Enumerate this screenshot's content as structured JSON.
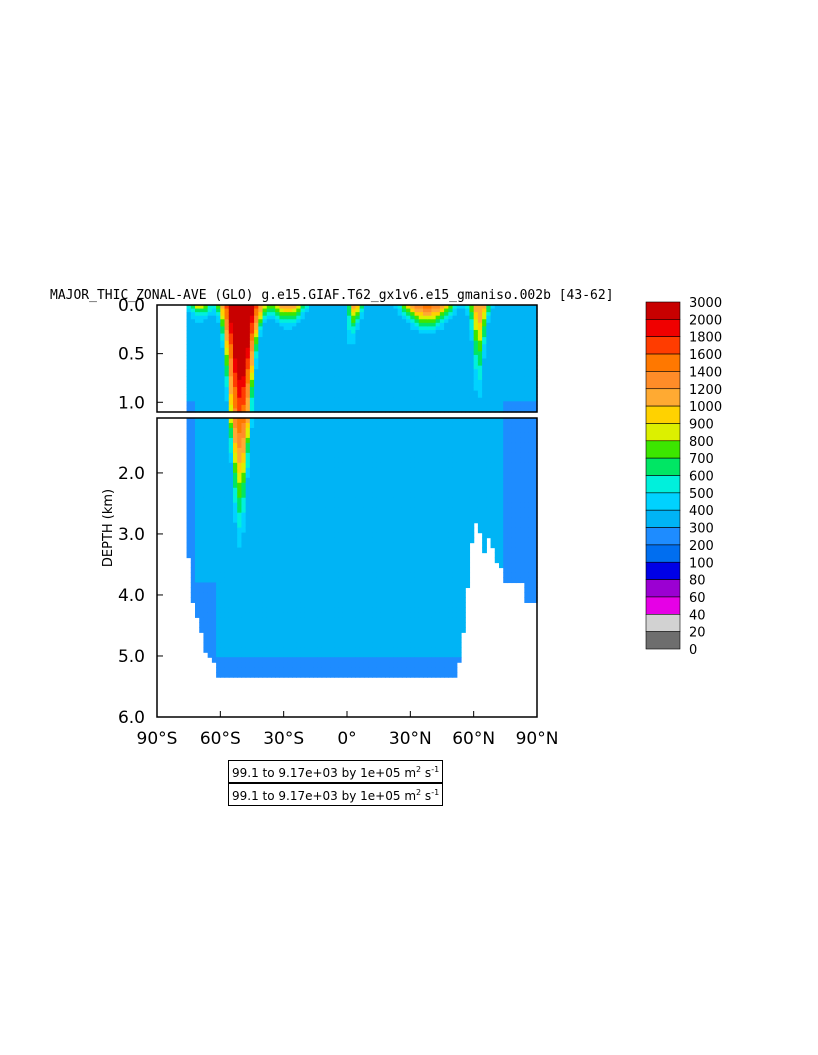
{
  "title": "MAJOR_THIC_ZONAL-AVE (GLO) g.e15.GIAF.T62_gx1v6.e15_gmaniso.002b [43-62]",
  "info_lines": [
    {
      "text": "99.1 to 9.17e+03 by 1e+05 m",
      "sup1": "2",
      "mid": " s",
      "sup2": "-1"
    },
    {
      "text": "99.1 to 9.17e+03 by 1e+05 m",
      "sup1": "2",
      "mid": " s",
      "sup2": "-1"
    }
  ],
  "colors": {
    "0": "#6e6e6e",
    "20": "#d2d2d2",
    "40": "#e600e6",
    "60": "#9b00d2",
    "80": "#0000e6",
    "100": "#006ef0",
    "200": "#1e8cff",
    "300": "#00b4f5",
    "400": "#00d2ff",
    "500": "#00f0dc",
    "600": "#00e664",
    "700": "#3ce600",
    "800": "#dcf000",
    "900": "#ffd200",
    "1000": "#ffaa32",
    "1200": "#ff8c28",
    "1400": "#ff7800",
    "1600": "#ff3c00",
    "1800": "#f00000",
    "2000": "#c80000"
  },
  "chart_data": {
    "type": "heatmap",
    "title": "MAJOR_THIC_ZONAL-AVE (GLO) g.e15.GIAF.T62_gx1v6.e15_gmaniso.002b [43-62]",
    "xlabel": "",
    "ylabel": "DEPTH (km)",
    "xlim": [
      -90,
      90
    ],
    "ylim_upper": [
      0.0,
      1.1
    ],
    "ylim_lower": [
      1.1,
      6.0
    ],
    "xticks": [
      -90,
      -60,
      -30,
      0,
      30,
      60,
      90
    ],
    "xtick_labels": [
      "90°S",
      "60°S",
      "30°S",
      "0°",
      "30°N",
      "60°N",
      "90°N"
    ],
    "yticks_upper": [
      0.0,
      0.5,
      1.0
    ],
    "ytick_labels_upper": [
      "0.0",
      "0.5",
      "1.0"
    ],
    "yticks_lower": [
      2.0,
      3.0,
      4.0,
      5.0,
      6.0
    ],
    "ytick_labels_lower": [
      "2.0",
      "3.0",
      "4.0",
      "5.0",
      "6.0"
    ],
    "colorbar_levels": [
      0,
      20,
      40,
      60,
      80,
      100,
      200,
      300,
      400,
      500,
      600,
      700,
      800,
      900,
      1000,
      1200,
      1400,
      1600,
      1800,
      2000,
      3000
    ],
    "colorbar_labels": [
      "0",
      "20",
      "40",
      "60",
      "80",
      "100",
      "200",
      "300",
      "400",
      "500",
      "600",
      "700",
      "800",
      "900",
      "1000",
      "1200",
      "1400",
      "1600",
      "1800",
      "2000",
      "3000"
    ],
    "range": "99.1 to 9.17e+03",
    "units": "m2 s-1"
  }
}
